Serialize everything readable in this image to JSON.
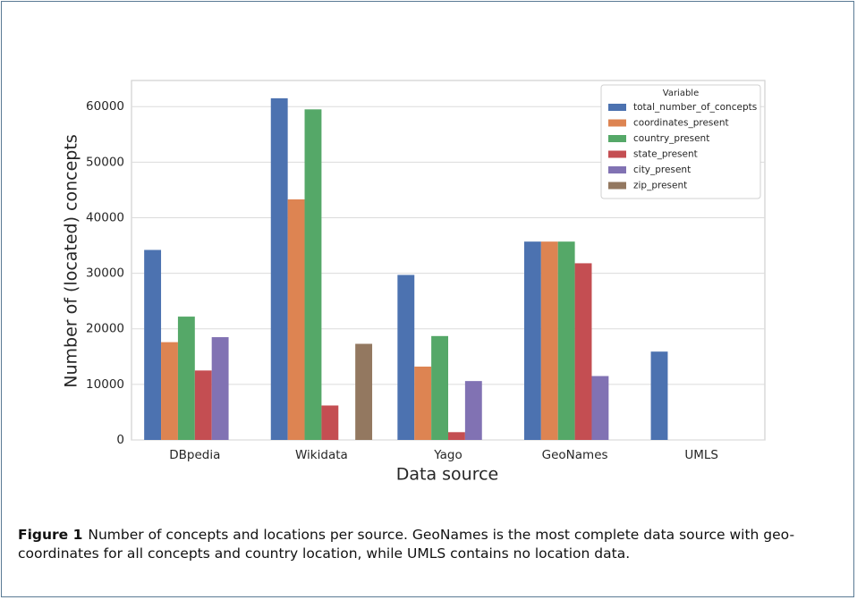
{
  "chart_data": {
    "type": "bar",
    "xlabel": "Data source",
    "ylabel": "Number of (located) concepts",
    "categories": [
      "DBpedia",
      "Wikidata",
      "Yago",
      "GeoNames",
      "UMLS"
    ],
    "series": [
      {
        "name": "total_number_of_concepts",
        "color": "#4c72b0",
        "values": [
          34200,
          61500,
          29700,
          35700,
          15900
        ]
      },
      {
        "name": "coordinates_present",
        "color": "#dd8452",
        "values": [
          17600,
          43300,
          13200,
          35700,
          0
        ]
      },
      {
        "name": "country_present",
        "color": "#55a868",
        "values": [
          22200,
          59500,
          18700,
          35700,
          0
        ]
      },
      {
        "name": "state_present",
        "color": "#c44e52",
        "values": [
          12500,
          6200,
          1400,
          31800,
          0
        ]
      },
      {
        "name": "city_present",
        "color": "#8172b3",
        "values": [
          18500,
          0,
          10600,
          11500,
          0
        ]
      },
      {
        "name": "zip_present",
        "color": "#937860",
        "values": [
          0,
          17300,
          0,
          0,
          0
        ]
      }
    ],
    "legend_title": "Variable",
    "legend": "upper right",
    "ylim": [
      0,
      64700
    ],
    "yticks": [
      0,
      10000,
      20000,
      30000,
      40000,
      50000,
      60000
    ],
    "grid": true,
    "caption_label": "Figure 1",
    "caption": "Number of concepts and locations per source. GeoNames is the most complete data source with geo-coordinates for all concepts and country location, while UMLS contains no location data."
  }
}
